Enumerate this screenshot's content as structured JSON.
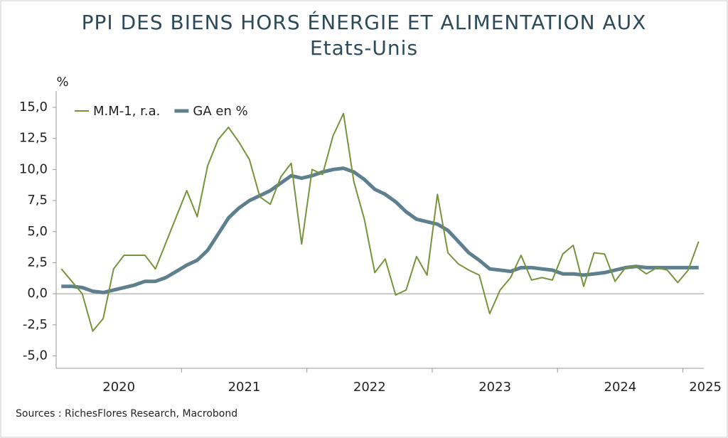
{
  "chart_data": {
    "type": "line",
    "title_lines": [
      "PPI DES BIENS HORS ÉNERGIE ET ALIMENTATION AUX",
      "Etats-Unis"
    ],
    "y_unit": "%",
    "source": "Sources : RichesFlores Research, Macrobond",
    "x_labels": [
      "2020",
      "2021",
      "2022",
      "2023",
      "2024",
      "2025"
    ],
    "ylim": [
      -6,
      15
    ],
    "yticks": [
      {
        "value": 15,
        "label": "15,0"
      },
      {
        "value": 12.5,
        "label": "12,5"
      },
      {
        "value": 10,
        "label": "10,0"
      },
      {
        "value": 7.5,
        "label": "7,5"
      },
      {
        "value": 5,
        "label": "5,0"
      },
      {
        "value": 2.5,
        "label": "2,5"
      },
      {
        "value": 0,
        "label": "0,0"
      },
      {
        "value": -2.5,
        "label": "-2,5"
      },
      {
        "value": -5,
        "label": "-5,0"
      }
    ],
    "legend": "upper left",
    "series": [
      {
        "name": "M.M-1, r.a.",
        "color": "#77933c",
        "width": 2,
        "values": [
          2.0,
          1.0,
          0.0,
          -3.0,
          -2.0,
          2.0,
          3.1,
          3.1,
          3.1,
          2.0,
          4.1,
          6.2,
          8.3,
          6.2,
          10.3,
          12.4,
          13.4,
          12.2,
          10.8,
          7.8,
          7.2,
          9.4,
          10.5,
          4.0,
          10.0,
          9.6,
          12.7,
          14.5,
          9.0,
          6.0,
          1.7,
          2.8,
          -0.1,
          0.3,
          3.0,
          1.5,
          8.0,
          3.3,
          2.4,
          1.9,
          1.5,
          -1.6,
          0.3,
          1.3,
          3.1,
          1.1,
          1.3,
          1.1,
          3.2,
          3.9,
          0.6,
          3.3,
          3.2,
          1.0,
          2.1,
          2.2,
          1.6,
          2.1,
          1.9,
          0.9,
          1.9,
          4.2
        ]
      },
      {
        "name": "GA en %",
        "color": "#5e7f8e",
        "width": 5,
        "values": [
          0.6,
          0.6,
          0.5,
          0.2,
          0.1,
          0.3,
          0.5,
          0.7,
          1.0,
          1.0,
          1.3,
          1.8,
          2.3,
          2.7,
          3.5,
          4.8,
          6.1,
          6.9,
          7.5,
          7.9,
          8.3,
          8.9,
          9.5,
          9.3,
          9.5,
          9.8,
          10.0,
          10.1,
          9.8,
          9.2,
          8.4,
          8.0,
          7.4,
          6.6,
          6.0,
          5.8,
          5.6,
          5.1,
          4.2,
          3.3,
          2.7,
          2.0,
          1.9,
          1.8,
          2.1,
          2.1,
          2.0,
          1.9,
          1.6,
          1.6,
          1.5,
          1.6,
          1.7,
          1.9,
          2.1,
          2.2,
          2.1,
          2.1,
          2.1,
          2.1,
          2.1,
          2.1
        ]
      }
    ]
  }
}
